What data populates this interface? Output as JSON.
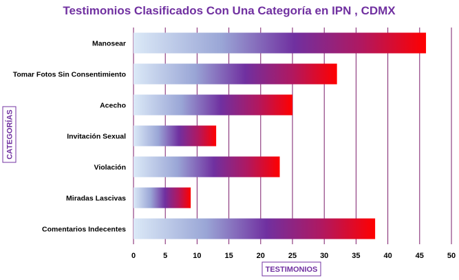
{
  "chart_data": {
    "type": "bar",
    "orientation": "horizontal",
    "title": "Testimonios Clasificados Con Una Categoría en IPN , CDMX",
    "xlabel": "TESTIMONIOS",
    "ylabel": "CATEGORÍAS",
    "categories": [
      "Manosear",
      "Tomar Fotos Sin Consentimiento",
      "Acecho",
      "Invitación Sexual",
      "Violación",
      "Miradas Lascivas",
      "Comentarios Indecentes"
    ],
    "values": [
      46,
      32,
      25,
      13,
      23,
      9,
      38
    ],
    "xlim": [
      0,
      50
    ],
    "xticks": [
      "0",
      "5",
      "10",
      "15",
      "20",
      "25",
      "30",
      "35",
      "40",
      "45",
      "50"
    ],
    "grid": "vertical",
    "colors": {
      "gradient_start": "#dbe9f7",
      "gradient_mid1": "#9aa6d6",
      "gradient_mid2": "#7030a0",
      "gradient_mid3": "#b01860",
      "gradient_end": "#ff0000",
      "gridline": "#7a1a6a",
      "title": "#7030a0",
      "axis_title": "#7030a0"
    }
  }
}
